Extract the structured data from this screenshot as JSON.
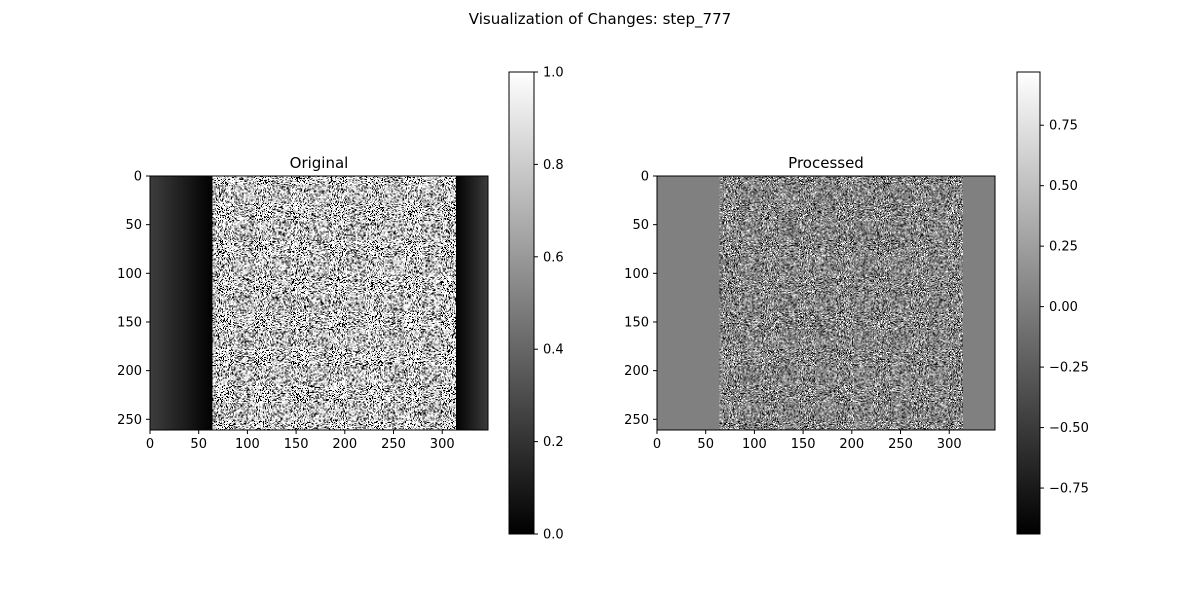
{
  "figure": {
    "title": "Visualization of Changes: step_777"
  },
  "chart_data": [
    {
      "type": "heatmap",
      "title": "Original",
      "colormap": "gray",
      "image_width": 347,
      "image_height": 261,
      "xlim": [
        0,
        347
      ],
      "ylim": [
        261,
        0
      ],
      "xticks": [
        0,
        50,
        100,
        150,
        200,
        250,
        300
      ],
      "yticks": [
        0,
        50,
        100,
        150,
        200,
        250
      ],
      "band": {
        "start": 64,
        "end": 313
      },
      "pattern": "dark gradient edges, dense white/black random noise in central band",
      "colorbar": {
        "min": 0.0,
        "max": 1.0,
        "ticks": [
          "0.0",
          "0.2",
          "0.4",
          "0.6",
          "0.8",
          "1.0"
        ]
      }
    },
    {
      "type": "heatmap",
      "title": "Processed",
      "colormap": "gray",
      "image_width": 347,
      "image_height": 261,
      "xlim": [
        0,
        347
      ],
      "ylim": [
        261,
        0
      ],
      "xticks": [
        0,
        50,
        100,
        150,
        200,
        250,
        300
      ],
      "yticks": [
        0,
        50,
        100,
        150,
        200,
        250
      ],
      "band": {
        "start": 64,
        "end": 313
      },
      "pattern": "flat mid-gray edges (0.0), mixed gray noise in central band",
      "colorbar": {
        "min": -0.94,
        "max": 0.97,
        "ticks": [
          "−0.75",
          "−0.50",
          "−0.25",
          "0.00",
          "0.25",
          "0.50",
          "0.75"
        ],
        "tick_values": [
          -0.75,
          -0.5,
          -0.25,
          0.0,
          0.25,
          0.5,
          0.75
        ]
      }
    }
  ]
}
